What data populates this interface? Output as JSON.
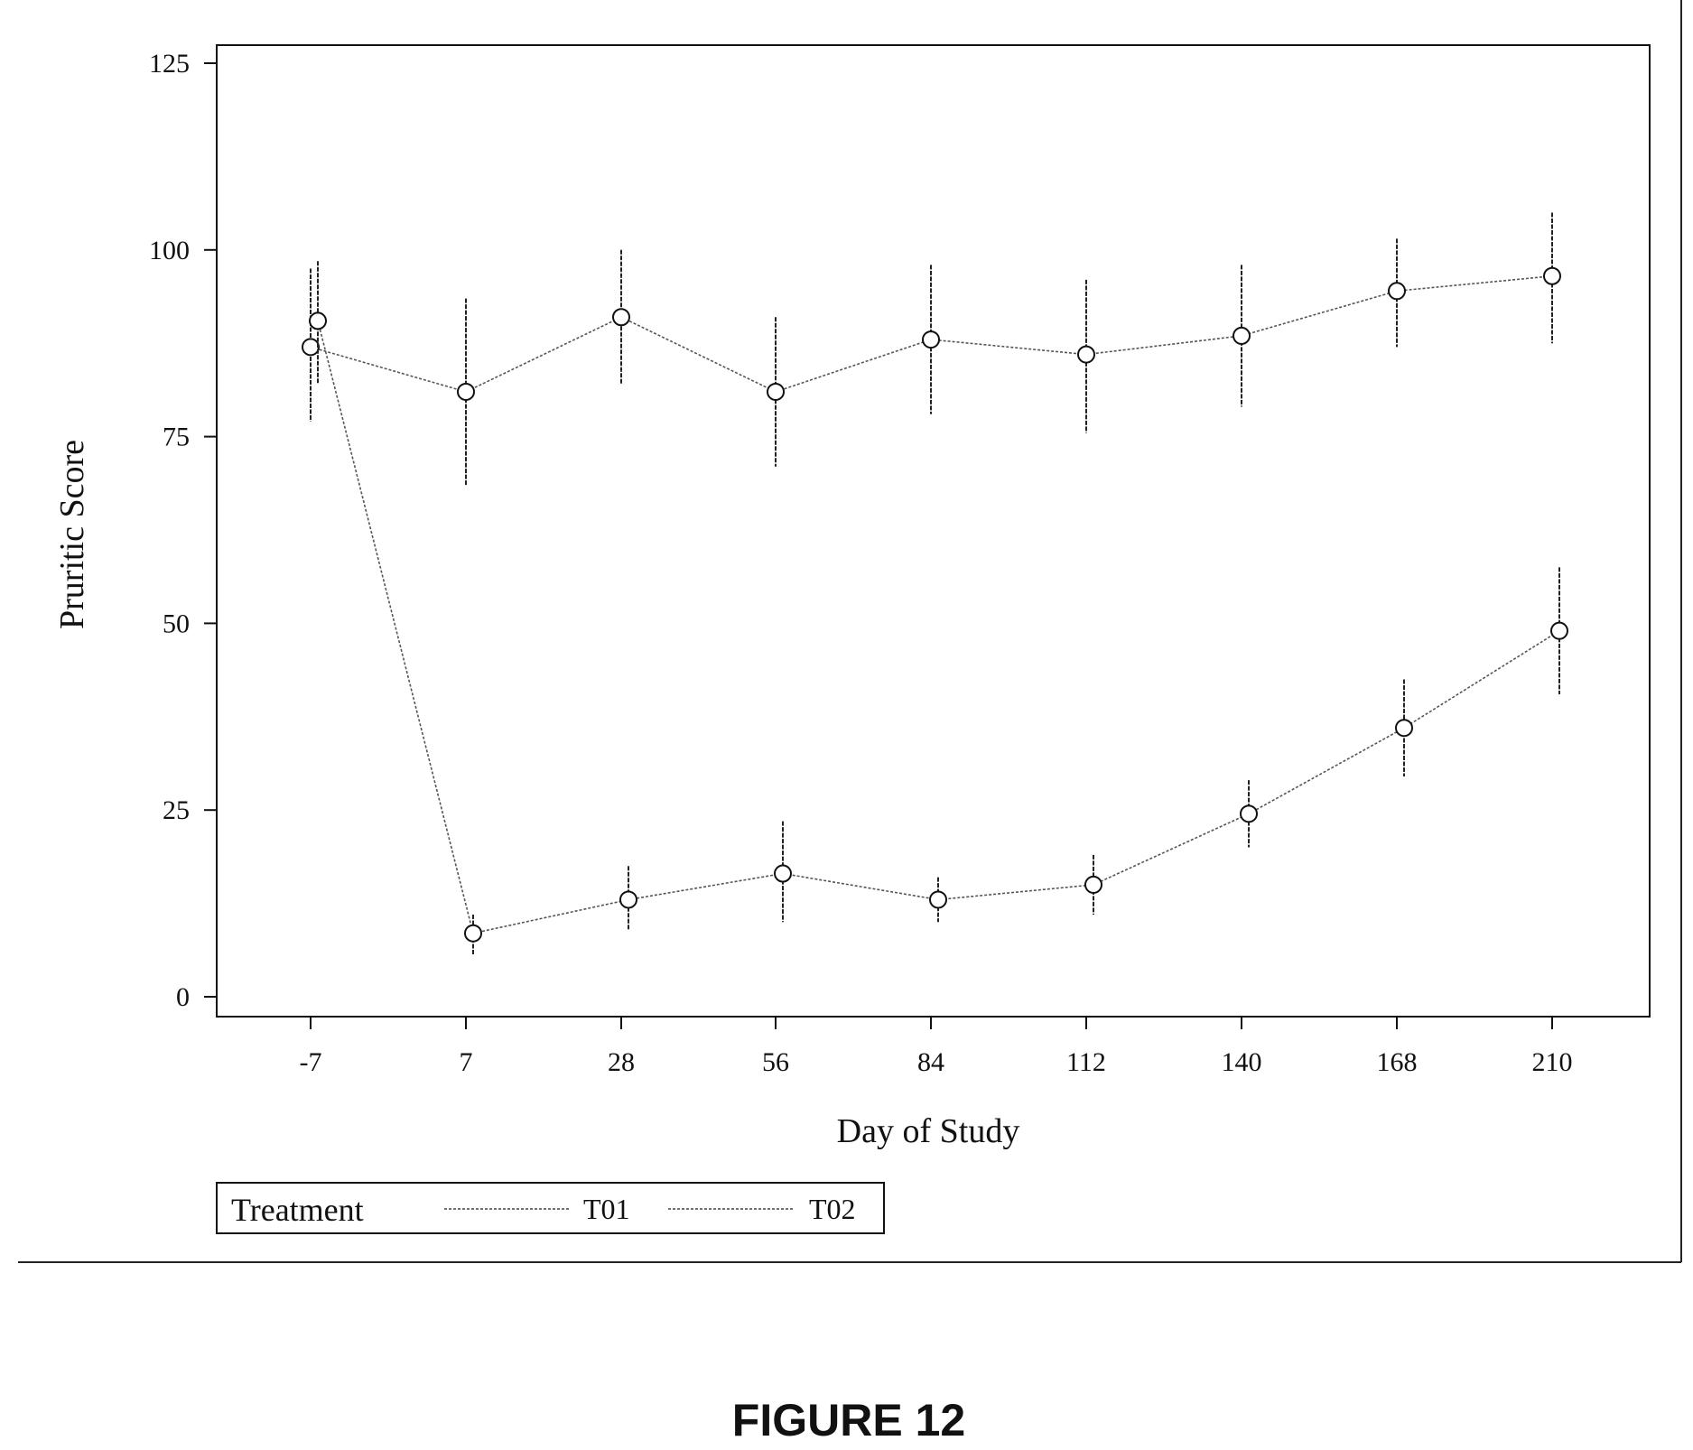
{
  "chart_data": {
    "type": "line",
    "title": "",
    "xlabel": "Day of Study",
    "ylabel": "Pruritic Score",
    "categories": [
      "-7",
      "7",
      "28",
      "56",
      "84",
      "112",
      "140",
      "168",
      "210"
    ],
    "ylim": [
      0,
      125
    ],
    "yticks": [
      0,
      25,
      50,
      75,
      100,
      125
    ],
    "grid": false,
    "legend": {
      "title": "Treatment",
      "placement": "bottom-left",
      "entries": [
        "T01",
        "T02"
      ]
    },
    "series": [
      {
        "name": "T01",
        "values": [
          87,
          81,
          91,
          81,
          88,
          86,
          88.5,
          94.5,
          96.5
        ],
        "lower": [
          77,
          68.5,
          82,
          71,
          78,
          75.5,
          79,
          87,
          87.5
        ],
        "upper": [
          97.5,
          93.5,
          100,
          91,
          98,
          96,
          98,
          101.5,
          105
        ]
      },
      {
        "name": "T02",
        "values": [
          90.5,
          8.5,
          13,
          16.5,
          13,
          15,
          24.5,
          36,
          49
        ],
        "lower": [
          82,
          5.5,
          9,
          10,
          10,
          11,
          20,
          29.5,
          40.5
        ],
        "upper": [
          98.5,
          11,
          17.5,
          23.5,
          16,
          19,
          29,
          42.5,
          57.5
        ]
      }
    ]
  },
  "figure": {
    "caption": "FIGURE 12"
  }
}
